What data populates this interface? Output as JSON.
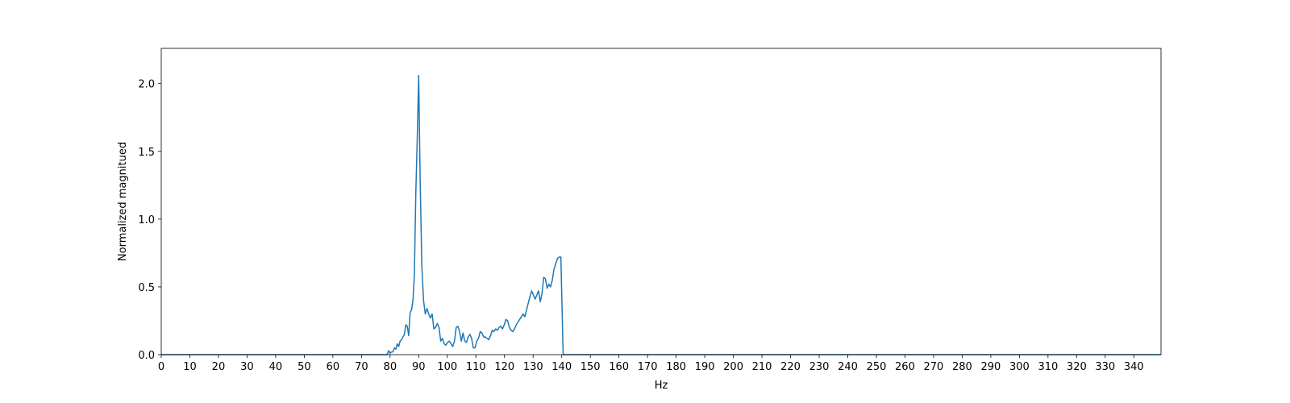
{
  "chart_data": {
    "type": "line",
    "x_label": "Hz",
    "y_label": "Normalized magnitued",
    "xlim": [
      0,
      349.5
    ],
    "ylim": [
      0,
      2.26
    ],
    "xticks": [
      0,
      10,
      20,
      30,
      40,
      50,
      60,
      70,
      80,
      90,
      100,
      110,
      120,
      130,
      140,
      150,
      160,
      170,
      180,
      190,
      200,
      210,
      220,
      230,
      240,
      250,
      260,
      270,
      280,
      290,
      300,
      310,
      320,
      330,
      340
    ],
    "yticks": [
      {
        "value": 0,
        "label": "0.0"
      },
      0.5,
      {
        "value": 1,
        "label": "1.0"
      },
      1.5,
      {
        "value": 2,
        "label": "2.0"
      }
    ],
    "x": [
      0,
      79,
      79.5,
      80,
      80.5,
      81,
      81.5,
      82,
      82.5,
      83,
      83.5,
      84,
      84.5,
      85,
      85.5,
      86,
      86.5,
      87,
      87.5,
      88,
      88.5,
      89,
      89.5,
      90,
      90.5,
      91.1,
      91.7,
      92.3,
      92.9,
      93.5,
      94.1,
      94.7,
      95.3,
      95.9,
      96.5,
      97.1,
      97.7,
      98.3,
      98.9,
      99.5,
      100.1,
      100.7,
      101.3,
      101.9,
      102.5,
      103.1,
      103.7,
      104.3,
      104.9,
      105.5,
      106.1,
      106.7,
      107.3,
      107.9,
      108.5,
      109.1,
      109.7,
      110.3,
      110.9,
      111.5,
      112.1,
      112.7,
      113.3,
      113.9,
      114.5,
      115.1,
      115.7,
      116.3,
      116.9,
      117.5,
      118.1,
      118.7,
      119.3,
      119.9,
      120.5,
      121.1,
      121.7,
      122.3,
      122.9,
      123.5,
      124.1,
      124.7,
      125.3,
      125.9,
      126.5,
      127.1,
      127.7,
      128.3,
      128.9,
      129.5,
      130.1,
      130.7,
      131.3,
      131.9,
      132.5,
      133.1,
      133.7,
      134.3,
      134.9,
      135.5,
      136.1,
      136.7,
      137.3,
      137.9,
      138.5,
      139.1,
      139.7,
      140.5,
      349.5
    ],
    "series": [
      {
        "color": "#1f77b4",
        "values": [
          0,
          0,
          0.03,
          0.01,
          0.02,
          0.02,
          0.05,
          0.04,
          0.08,
          0.06,
          0.1,
          0.11,
          0.13,
          0.15,
          0.22,
          0.21,
          0.14,
          0.31,
          0.33,
          0.4,
          0.6,
          1.2,
          1.6,
          2.06,
          1.3,
          0.65,
          0.4,
          0.3,
          0.34,
          0.3,
          0.27,
          0.3,
          0.19,
          0.2,
          0.23,
          0.2,
          0.1,
          0.12,
          0.08,
          0.07,
          0.09,
          0.1,
          0.08,
          0.06,
          0.1,
          0.2,
          0.21,
          0.17,
          0.1,
          0.16,
          0.1,
          0.09,
          0.13,
          0.15,
          0.12,
          0.05,
          0.05,
          0.1,
          0.12,
          0.17,
          0.16,
          0.13,
          0.13,
          0.12,
          0.11,
          0.14,
          0.18,
          0.17,
          0.19,
          0.18,
          0.2,
          0.21,
          0.19,
          0.22,
          0.26,
          0.25,
          0.2,
          0.18,
          0.17,
          0.19,
          0.22,
          0.24,
          0.26,
          0.28,
          0.3,
          0.28,
          0.33,
          0.38,
          0.43,
          0.47,
          0.44,
          0.41,
          0.44,
          0.47,
          0.39,
          0.45,
          0.57,
          0.56,
          0.49,
          0.52,
          0.5,
          0.55,
          0.63,
          0.67,
          0.71,
          0.72,
          0.72,
          0,
          0
        ]
      }
    ]
  }
}
